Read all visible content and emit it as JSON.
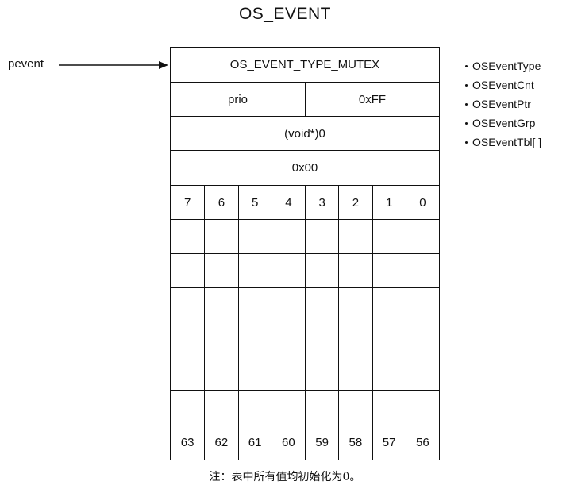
{
  "title": "OS_EVENT",
  "pointer": {
    "label": "pevent"
  },
  "struct": {
    "type_value": "OS_EVENT_TYPE_MUTEX",
    "cnt_left": "prio",
    "cnt_right": "0xFF",
    "ptr_value": "(void*)0",
    "grp_value": "0x00",
    "top_bits": [
      "7",
      "6",
      "5",
      "4",
      "3",
      "2",
      "1",
      "0"
    ],
    "empty_rows": 6,
    "bottom_bits": [
      "63",
      "62",
      "61",
      "60",
      "59",
      "58",
      "57",
      "56"
    ]
  },
  "fields": [
    "OSEventType",
    "OSEventCnt",
    "OSEventPtr",
    "OSEventGrp",
    "OSEventTbl[ ]"
  ],
  "note": "注：表中所有值均初始化为0。"
}
